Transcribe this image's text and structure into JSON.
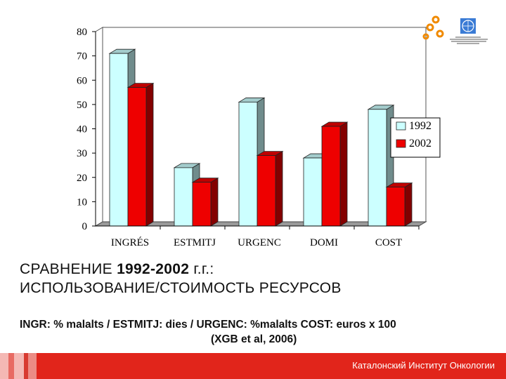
{
  "chart_data": {
    "type": "bar",
    "categories": [
      "INGRÉS",
      "ESTMITJ",
      "URGENC",
      "DOMI",
      "COST"
    ],
    "series": [
      {
        "name": "1992",
        "values": [
          71,
          24,
          51,
          28,
          48
        ],
        "color": "#ccffff"
      },
      {
        "name": "2002",
        "values": [
          57,
          18,
          29,
          41,
          16
        ],
        "color": "#ee0000"
      }
    ],
    "yticks": [
      "0",
      "10",
      "20",
      "30",
      "40",
      "50",
      "60",
      "70",
      "80"
    ],
    "ylim": [
      0,
      80
    ],
    "legend_position": "right",
    "grid": false,
    "three_d": true
  },
  "heading": {
    "line1_prefix": "СРАВНЕНИЕ ",
    "line1_bold": "1992-2002",
    "line1_suffix": " г.г.:",
    "line2": "ИСПОЛЬЗОВАНИЕ/СТОИМОСТЬ РЕСУРСОВ"
  },
  "description": {
    "main": "INGR: % malalts / ESTMITJ: dies / URGENC: %malalts COST: euros x 100",
    "citation": "(XGB et al, 2006)"
  },
  "footer": {
    "text": "Каталонский Институт Онкологии",
    "bar_color": "#e1251b"
  },
  "logo": {
    "icon": "un-emblem-icon",
    "accent_color": "#f08a00"
  }
}
